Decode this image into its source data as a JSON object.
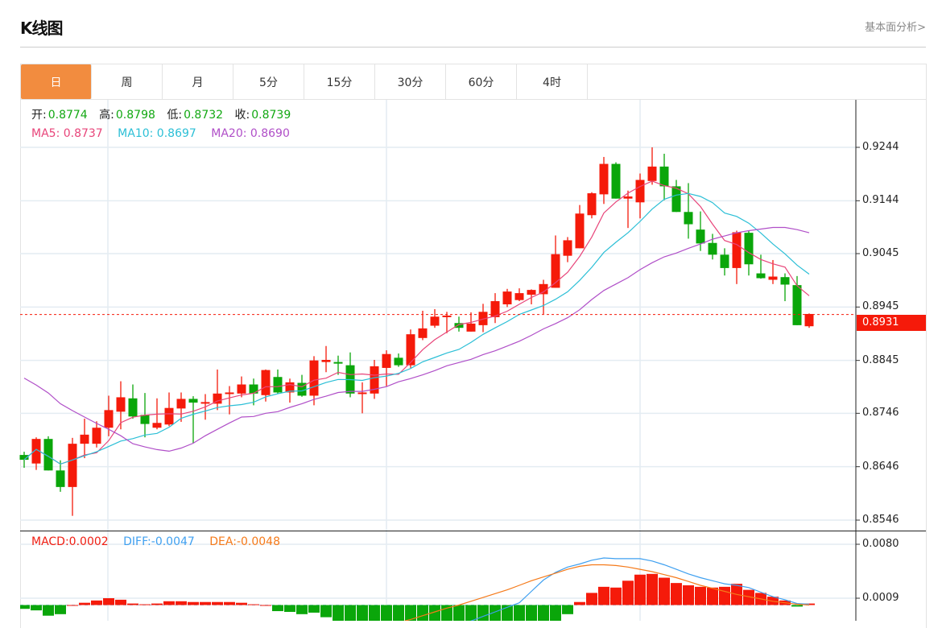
{
  "header": {
    "title": "K线图",
    "link": "基本面分析>"
  },
  "tabs": [
    {
      "label": "日",
      "active": true
    },
    {
      "label": "周"
    },
    {
      "label": "月"
    },
    {
      "label": "5分"
    },
    {
      "label": "15分"
    },
    {
      "label": "30分"
    },
    {
      "label": "60分"
    },
    {
      "label": "4时"
    }
  ],
  "ohlc_info": {
    "open_label": "开:",
    "open": "0.8774",
    "high_label": "高:",
    "high": "0.8798",
    "low_label": "低:",
    "low": "0.8732",
    "close_label": "收:",
    "close": "0.8739"
  },
  "ma_info": {
    "ma5": "MA5: 0.8737",
    "ma10": "MA10: 0.8697",
    "ma20": "MA20: 0.8690"
  },
  "macd_info": {
    "macd": "MACD:0.0002",
    "diff": "DIFF:-0.0047",
    "dea": "DEA:-0.0048"
  },
  "colors": {
    "up": "#f51a0a",
    "down": "#0aa60a",
    "ma5": "#e8457a",
    "ma10": "#2bbfd6",
    "ma20": "#b04fc8",
    "diff": "#3fa0f0",
    "dea": "#f57a1a",
    "active_tab": "#f28c3f"
  },
  "chart_data": {
    "type": "candlestick",
    "price_axis": {
      "ticks": [
        "0.9244",
        "0.9144",
        "0.9045",
        "0.8945",
        "0.8845",
        "0.8746",
        "0.8646",
        "0.8546"
      ],
      "range": [
        0.8546,
        0.9244
      ]
    },
    "current_price": "0.8931",
    "candles_ohlc": [
      [
        0.8668,
        0.8674,
        0.8644,
        0.8659
      ],
      [
        0.8652,
        0.8701,
        0.864,
        0.8698
      ],
      [
        0.8698,
        0.8703,
        0.8639,
        0.8639
      ],
      [
        0.8639,
        0.8658,
        0.8599,
        0.8608
      ],
      [
        0.8608,
        0.87,
        0.8554,
        0.8689
      ],
      [
        0.8689,
        0.8736,
        0.8662,
        0.8706
      ],
      [
        0.8689,
        0.8731,
        0.8682,
        0.8719
      ],
      [
        0.8719,
        0.8779,
        0.8703,
        0.8752
      ],
      [
        0.8749,
        0.8806,
        0.8716,
        0.8776
      ],
      [
        0.8774,
        0.88,
        0.8736,
        0.874
      ],
      [
        0.8743,
        0.8784,
        0.8701,
        0.8726
      ],
      [
        0.8719,
        0.8774,
        0.8716,
        0.8728
      ],
      [
        0.8725,
        0.8785,
        0.8722,
        0.8756
      ],
      [
        0.8755,
        0.8785,
        0.873,
        0.8773
      ],
      [
        0.8773,
        0.8778,
        0.869,
        0.8766
      ],
      [
        0.8764,
        0.8782,
        0.8734,
        0.8767
      ],
      [
        0.8764,
        0.8828,
        0.8752,
        0.8783
      ],
      [
        0.8782,
        0.8797,
        0.8744,
        0.8785
      ],
      [
        0.8783,
        0.8815,
        0.8776,
        0.88
      ],
      [
        0.88,
        0.8811,
        0.8761,
        0.8783
      ],
      [
        0.878,
        0.8828,
        0.8768,
        0.8827
      ],
      [
        0.8814,
        0.8828,
        0.8782,
        0.8785
      ],
      [
        0.8785,
        0.8811,
        0.8766,
        0.8804
      ],
      [
        0.8803,
        0.8818,
        0.8777,
        0.8779
      ],
      [
        0.8779,
        0.8853,
        0.8761,
        0.8845
      ],
      [
        0.8842,
        0.8872,
        0.8823,
        0.8846
      ],
      [
        0.8842,
        0.8854,
        0.8818,
        0.8839
      ],
      [
        0.8836,
        0.886,
        0.8776,
        0.8783
      ],
      [
        0.8782,
        0.8804,
        0.8746,
        0.8785
      ],
      [
        0.8783,
        0.8846,
        0.8773,
        0.8834
      ],
      [
        0.8831,
        0.8864,
        0.8797,
        0.8857
      ],
      [
        0.885,
        0.8858,
        0.8833,
        0.8836
      ],
      [
        0.8836,
        0.8903,
        0.8831,
        0.8894
      ],
      [
        0.8887,
        0.8938,
        0.8883,
        0.8905
      ],
      [
        0.891,
        0.8941,
        0.8906,
        0.8927
      ],
      [
        0.8926,
        0.8936,
        0.8896,
        0.8929
      ],
      [
        0.8915,
        0.8927,
        0.8899,
        0.8906
      ],
      [
        0.8899,
        0.8935,
        0.8899,
        0.8914
      ],
      [
        0.8911,
        0.8951,
        0.8898,
        0.8936
      ],
      [
        0.8926,
        0.8971,
        0.8915,
        0.8956
      ],
      [
        0.895,
        0.8979,
        0.8945,
        0.8974
      ],
      [
        0.8958,
        0.898,
        0.8956,
        0.8971
      ],
      [
        0.8968,
        0.8978,
        0.895,
        0.8977
      ],
      [
        0.8969,
        0.8996,
        0.8932,
        0.8988
      ],
      [
        0.8981,
        0.9079,
        0.8981,
        0.9044
      ],
      [
        0.9041,
        0.9076,
        0.9029,
        0.907
      ],
      [
        0.9055,
        0.9136,
        0.9055,
        0.912
      ],
      [
        0.9117,
        0.916,
        0.9111,
        0.9158
      ],
      [
        0.9156,
        0.9226,
        0.9138,
        0.9213
      ],
      [
        0.9213,
        0.9216,
        0.9148,
        0.9148
      ],
      [
        0.9148,
        0.9163,
        0.9093,
        0.9152
      ],
      [
        0.9141,
        0.9195,
        0.9111,
        0.9183
      ],
      [
        0.9181,
        0.9244,
        0.9174,
        0.9208
      ],
      [
        0.9208,
        0.9232,
        0.9145,
        0.9171
      ],
      [
        0.9171,
        0.9183,
        0.9123,
        0.9123
      ],
      [
        0.9123,
        0.9177,
        0.9073,
        0.91
      ],
      [
        0.909,
        0.9124,
        0.905,
        0.9064
      ],
      [
        0.9065,
        0.9082,
        0.9034,
        0.9043
      ],
      [
        0.9043,
        0.9055,
        0.9004,
        0.9018
      ],
      [
        0.9018,
        0.9088,
        0.8988,
        0.9085
      ],
      [
        0.9084,
        0.9088,
        0.9004,
        0.9025
      ],
      [
        0.9008,
        0.9043,
        0.8998,
        0.8999
      ],
      [
        0.8996,
        0.9033,
        0.8988,
        0.9002
      ],
      [
        0.9001,
        0.9008,
        0.8956,
        0.8987
      ],
      [
        0.8986,
        0.9003,
        0.8911,
        0.8911
      ],
      [
        0.8909,
        0.8933,
        0.8906,
        0.8932
      ]
    ],
    "ma20": [
      0.8812,
      0.8799,
      0.8784,
      0.8764,
      0.8751,
      0.8739,
      0.8727,
      0.8716,
      0.8704,
      0.8689,
      0.8683,
      0.8678,
      0.8675,
      0.8681,
      0.869,
      0.8704,
      0.8716,
      0.8728,
      0.8739,
      0.874,
      0.8746,
      0.8749,
      0.8757,
      0.8764,
      0.8772,
      0.8778,
      0.8785,
      0.8787,
      0.8787,
      0.8791,
      0.8796,
      0.8805,
      0.8811,
      0.8818,
      0.8826,
      0.8835,
      0.8841,
      0.8847,
      0.8856,
      0.8863,
      0.8872,
      0.8881,
      0.8892,
      0.8904,
      0.8914,
      0.8925,
      0.894,
      0.8959,
      0.8976,
      0.8988,
      0.9,
      0.9015,
      0.9028,
      0.9039,
      0.9046,
      0.9055,
      0.9063,
      0.9072,
      0.9078,
      0.9084,
      0.9088,
      0.9091,
      0.9094,
      0.9094,
      0.909,
      0.9084
    ],
    "macd_axis": {
      "ticks": [
        "0.0080",
        "0.0009"
      ]
    },
    "macd_hist": [
      -0.0005,
      -0.0007,
      -0.0014,
      -0.0012,
      0.0,
      0.0003,
      0.0006,
      0.0009,
      0.0007,
      0.0002,
      0.0001,
      0.0002,
      0.0005,
      0.0005,
      0.0004,
      0.0004,
      0.0004,
      0.0004,
      0.0003,
      0.0001,
      0.0,
      -0.0008,
      -0.0009,
      -0.0012,
      -0.001,
      -0.0016,
      -0.003,
      -0.004,
      -0.0048,
      -0.0052,
      -0.0055,
      -0.0058,
      -0.006,
      -0.006,
      -0.0058,
      -0.0055,
      -0.005,
      -0.0045,
      -0.004,
      -0.0035,
      -0.003,
      -0.0027,
      -0.0025,
      -0.0024,
      -0.0022,
      -0.0012,
      0.0004,
      0.0016,
      0.0024,
      0.0023,
      0.0032,
      0.004,
      0.0041,
      0.0036,
      0.0029,
      0.0026,
      0.0024,
      0.0023,
      0.0024,
      0.0028,
      0.002,
      0.0016,
      0.0011,
      0.0006,
      -0.0002,
      0.0002
    ],
    "diff": [
      -0.0033,
      -0.0035,
      -0.0039,
      -0.004,
      -0.0036,
      -0.0035,
      -0.0034,
      -0.0032,
      -0.0031,
      -0.0034,
      -0.0035,
      -0.0034,
      -0.0031,
      -0.003,
      -0.003,
      -0.0029,
      -0.0028,
      -0.0027,
      -0.0026,
      -0.0027,
      -0.0028,
      -0.0033,
      -0.0034,
      -0.0037,
      -0.0037,
      -0.0042,
      -0.005,
      -0.0055,
      -0.0058,
      -0.0057,
      -0.0055,
      -0.0052,
      -0.0049,
      -0.0044,
      -0.0038,
      -0.0032,
      -0.0025,
      -0.0021,
      -0.0015,
      -0.0009,
      -0.0003,
      0.0003,
      0.0018,
      0.0033,
      0.0043,
      0.005,
      0.0054,
      0.0059,
      0.0062,
      0.0061,
      0.0061,
      0.0061,
      0.0058,
      0.0053,
      0.0047,
      0.0041,
      0.0036,
      0.0032,
      0.0028,
      0.0026,
      0.0023,
      0.0017,
      0.0011,
      0.0007,
      0.0002,
      0.0001
    ],
    "dea": [
      -0.003,
      -0.0031,
      -0.0032,
      -0.0034,
      -0.0036,
      -0.0037,
      -0.0037,
      -0.0036,
      -0.0035,
      -0.0035,
      -0.0035,
      -0.0035,
      -0.0034,
      -0.0033,
      -0.0032,
      -0.0031,
      -0.003,
      -0.0029,
      -0.0028,
      -0.0028,
      -0.0028,
      -0.0029,
      -0.003,
      -0.0031,
      -0.0032,
      -0.0034,
      -0.0035,
      -0.0035,
      -0.0034,
      -0.0031,
      -0.0027,
      -0.0023,
      -0.0019,
      -0.0014,
      -0.0009,
      -0.0004,
      0.0,
      0.0005,
      0.001,
      0.0015,
      0.002,
      0.0026,
      0.0032,
      0.0037,
      0.0042,
      0.0047,
      0.0051,
      0.0053,
      0.0053,
      0.0052,
      0.005,
      0.0047,
      0.0044,
      0.004,
      0.0036,
      0.0031,
      0.0026,
      0.0022,
      0.0018,
      0.0014,
      0.0011,
      0.0008,
      0.0005,
      0.0003,
      0.0001,
      0.0
    ]
  }
}
